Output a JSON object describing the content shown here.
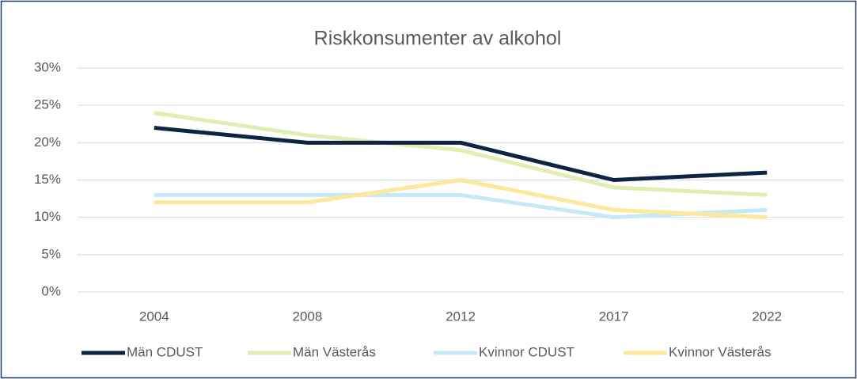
{
  "chart_data": {
    "type": "line",
    "title": "Riskkonsumenter av alkohol",
    "categories": [
      "2004",
      "2008",
      "2012",
      "2017",
      "2022"
    ],
    "series": [
      {
        "name": "Män CDUST",
        "color": "#0d2443",
        "values": [
          22,
          20,
          20,
          15,
          16
        ]
      },
      {
        "name": "Män Västerås",
        "color": "#e0efb1",
        "values": [
          24,
          21,
          19,
          14,
          13
        ]
      },
      {
        "name": "Kvinnor CDUST",
        "color": "#c6e9f8",
        "values": [
          13,
          13,
          13,
          10,
          11
        ]
      },
      {
        "name": "Kvinnor Västerås",
        "color": "#fde99b",
        "values": [
          12,
          12,
          15,
          11,
          10
        ]
      }
    ],
    "ylim": [
      0,
      30
    ],
    "yticks": [
      {
        "value": 0,
        "label": "0%"
      },
      {
        "value": 5,
        "label": "5%"
      },
      {
        "value": 10,
        "label": "10%"
      },
      {
        "value": 15,
        "label": "15%"
      },
      {
        "value": 20,
        "label": "20%"
      },
      {
        "value": 25,
        "label": "25%"
      },
      {
        "value": 30,
        "label": "30%"
      }
    ],
    "grid": true,
    "legend": "bottom"
  }
}
